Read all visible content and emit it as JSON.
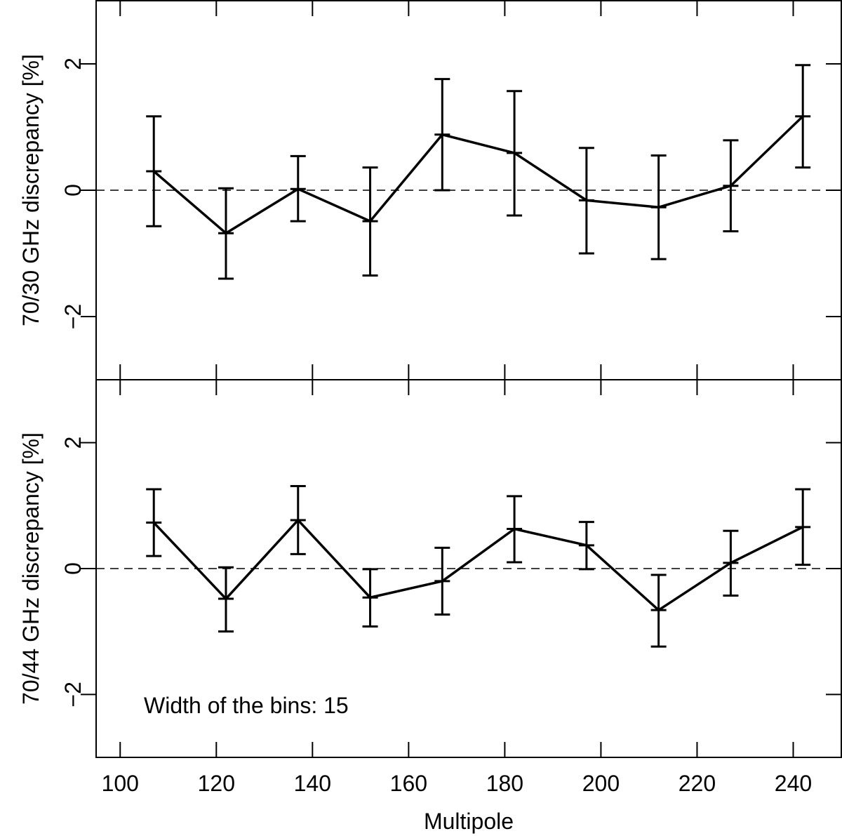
{
  "chart_data": [
    {
      "type": "line",
      "panel": "top",
      "ylabel": "70/30 GHz discrepancy [%]",
      "xlabel": "",
      "xlim": [
        95,
        250
      ],
      "ylim": [
        -3,
        3
      ],
      "yticks": [
        -2,
        0,
        2
      ],
      "ytick_labels": [
        "−2",
        "0",
        "2"
      ],
      "reference_line": 0,
      "series": [
        {
          "name": "70/30 GHz",
          "x": [
            107,
            122,
            137,
            152,
            167,
            182,
            197,
            212,
            227,
            242
          ],
          "y": [
            0.3,
            -0.68,
            0.02,
            -0.49,
            0.88,
            0.59,
            -0.16,
            -0.27,
            0.07,
            1.17
          ],
          "err_low": [
            -0.57,
            -1.4,
            -0.49,
            -1.35,
            0.0,
            -0.4,
            -1.0,
            -1.09,
            -0.65,
            0.36
          ],
          "err_high": [
            1.17,
            0.03,
            0.54,
            0.36,
            1.76,
            1.57,
            0.67,
            0.55,
            0.79,
            1.98
          ]
        }
      ]
    },
    {
      "type": "line",
      "panel": "bottom",
      "ylabel": "70/44 GHz discrepancy [%]",
      "xlabel": "Multipole",
      "xlim": [
        95,
        250
      ],
      "ylim": [
        -3,
        3
      ],
      "xticks": [
        100,
        120,
        140,
        160,
        180,
        200,
        220,
        240
      ],
      "xtick_labels": [
        "100",
        "120",
        "140",
        "160",
        "180",
        "200",
        "220",
        "240"
      ],
      "yticks": [
        -2,
        0,
        2
      ],
      "ytick_labels": [
        "−2",
        "0",
        "2"
      ],
      "reference_line": 0,
      "annotation": "Width of the bins: 15",
      "series": [
        {
          "name": "70/44 GHz",
          "x": [
            107,
            122,
            137,
            152,
            167,
            182,
            197,
            212,
            227,
            242
          ],
          "y": [
            0.73,
            -0.48,
            0.77,
            -0.46,
            -0.2,
            0.63,
            0.37,
            -0.66,
            0.09,
            0.66
          ],
          "err_low": [
            0.2,
            -1.0,
            0.23,
            -0.92,
            -0.73,
            0.1,
            -0.01,
            -1.24,
            -0.43,
            0.06
          ],
          "err_high": [
            1.26,
            0.02,
            1.31,
            -0.01,
            0.33,
            1.15,
            0.74,
            -0.1,
            0.6,
            1.26
          ]
        }
      ]
    }
  ]
}
